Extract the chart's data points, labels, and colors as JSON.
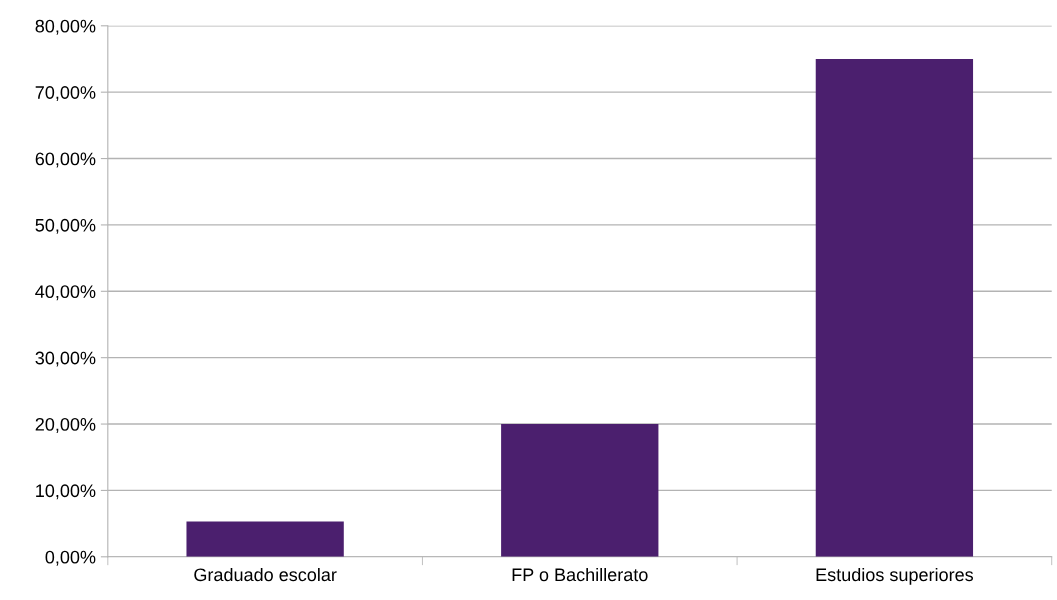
{
  "chart_data": {
    "type": "bar",
    "categories": [
      "Graduado escolar",
      "FP o Bachillerato",
      "Estudios superiores"
    ],
    "values": [
      5.3,
      20,
      75
    ],
    "color": "#4b1f6e",
    "ylim": [
      0,
      80
    ],
    "yticks": [
      {
        "value": 0,
        "label": "0,00%"
      },
      {
        "value": 10,
        "label": "10,00%"
      },
      {
        "value": 20,
        "label": "20,00%"
      },
      {
        "value": 30,
        "label": "30,00%"
      },
      {
        "value": 40,
        "label": "40,00%"
      },
      {
        "value": 50,
        "label": "50,00%"
      },
      {
        "value": 60,
        "label": "60,00%"
      },
      {
        "value": 70,
        "label": "70,00%"
      },
      {
        "value": 80,
        "label": "80,00%"
      }
    ],
    "grid": "y",
    "legend": false
  }
}
